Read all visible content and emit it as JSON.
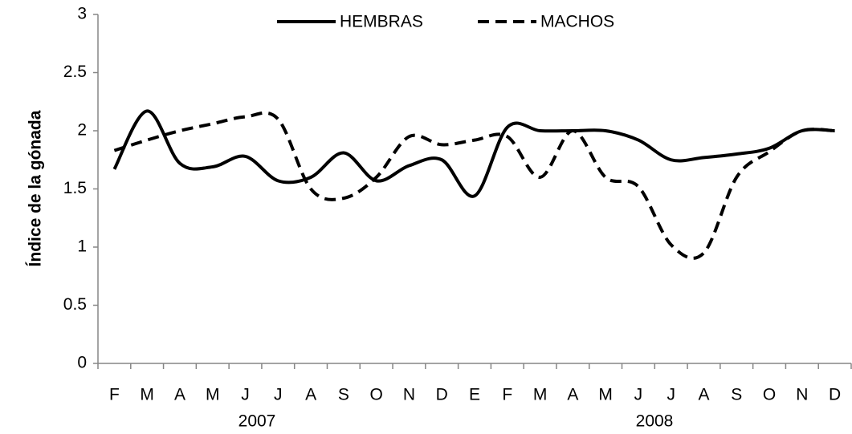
{
  "chart_data": {
    "type": "line",
    "y_axis_label": "Índice de la gónada",
    "categories": [
      "F",
      "M",
      "A",
      "M",
      "J",
      "J",
      "A",
      "S",
      "O",
      "N",
      "D",
      "E",
      "F",
      "M",
      "A",
      "M",
      "J",
      "J",
      "A",
      "S",
      "O",
      "N",
      "D"
    ],
    "year_labels": [
      "2007",
      "2008"
    ],
    "series": [
      {
        "name": "HEMBRAS",
        "color": "#000000",
        "dash": false,
        "values": [
          1.67,
          2.17,
          1.72,
          1.69,
          1.78,
          1.57,
          1.6,
          1.81,
          1.57,
          1.7,
          1.75,
          1.44,
          2.03,
          2.0,
          2.0,
          2.0,
          1.92,
          1.75,
          1.77,
          1.8,
          1.85,
          2.0,
          2.0
        ]
      },
      {
        "name": "MACHOS",
        "color": "#000000",
        "dash": true,
        "values": [
          1.83,
          1.92,
          2.0,
          2.06,
          2.12,
          2.1,
          1.5,
          1.42,
          1.6,
          1.95,
          1.88,
          1.92,
          1.95,
          1.6,
          2.0,
          1.6,
          1.52,
          1.02,
          0.95,
          1.6,
          1.82,
          2.0,
          2.0
        ]
      }
    ],
    "ylim": [
      0,
      3
    ],
    "yticks": [
      0,
      0.5,
      1,
      1.5,
      2,
      2.5,
      3
    ],
    "legend": "top",
    "grid": false
  }
}
